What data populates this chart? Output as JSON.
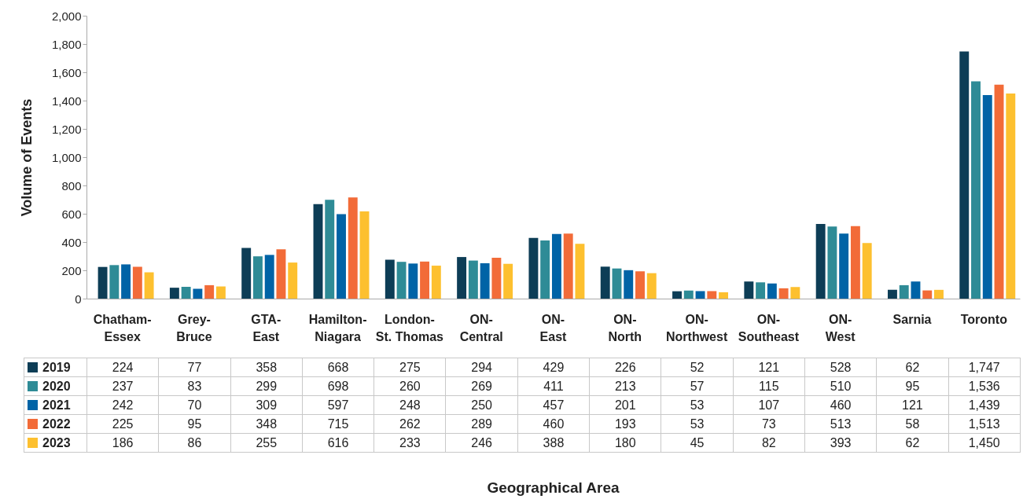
{
  "chart_data": {
    "type": "bar",
    "ylabel": "Volume of Events",
    "annotations": [
      "Geographical Area"
    ],
    "categories": [
      "Chatham-Essex",
      "Grey-Bruce",
      "GTA-East",
      "Hamilton-Niagara",
      "London-St. Thomas",
      "ON-Central",
      "ON-East",
      "ON-North",
      "ON-Northwest",
      "ON-Southeast",
      "ON-West",
      "Sarnia",
      "Toronto"
    ],
    "series": [
      {
        "name": "2019",
        "color": "#0d3d56",
        "values": [
          224,
          77,
          358,
          668,
          275,
          294,
          429,
          226,
          52,
          121,
          528,
          62,
          1747
        ],
        "value_labels": [
          "224",
          "77",
          "358",
          "668",
          "275",
          "294",
          "429",
          "226",
          "52",
          "121",
          "528",
          "62",
          "1,747"
        ]
      },
      {
        "name": "2020",
        "color": "#2e8b96",
        "values": [
          237,
          83,
          299,
          698,
          260,
          269,
          411,
          213,
          57,
          115,
          510,
          95,
          1536
        ],
        "value_labels": [
          "237",
          "83",
          "299",
          "698",
          "260",
          "269",
          "411",
          "213",
          "57",
          "115",
          "510",
          "95",
          "1,536"
        ]
      },
      {
        "name": "2021",
        "color": "#0063a6",
        "values": [
          242,
          70,
          309,
          597,
          248,
          250,
          457,
          201,
          53,
          107,
          460,
          121,
          1439
        ],
        "value_labels": [
          "242",
          "70",
          "309",
          "597",
          "248",
          "250",
          "457",
          "201",
          "53",
          "107",
          "460",
          "121",
          "1,439"
        ]
      },
      {
        "name": "2022",
        "color": "#f26b38",
        "values": [
          225,
          95,
          348,
          715,
          262,
          289,
          460,
          193,
          53,
          73,
          513,
          58,
          1513
        ],
        "value_labels": [
          "225",
          "95",
          "348",
          "715",
          "262",
          "289",
          "460",
          "193",
          "53",
          "73",
          "513",
          "58",
          "1,513"
        ]
      },
      {
        "name": "2023",
        "color": "#fdc02f",
        "values": [
          186,
          86,
          255,
          616,
          233,
          246,
          388,
          180,
          45,
          82,
          393,
          62,
          1450
        ],
        "value_labels": [
          "186",
          "86",
          "255",
          "616",
          "233",
          "246",
          "388",
          "180",
          "45",
          "82",
          "393",
          "62",
          "1,450"
        ]
      }
    ],
    "ylim": [
      0,
      2000
    ],
    "yticks": [
      0,
      {
        "value": 200,
        "label": "200"
      },
      {
        "value": 400,
        "label": "400"
      },
      {
        "value": 600,
        "label": "600"
      },
      {
        "value": 800,
        "label": "800"
      },
      {
        "value": 1000,
        "label": "1,000"
      },
      {
        "value": 1200,
        "label": "1,200"
      },
      {
        "value": 1400,
        "label": "1,400"
      },
      {
        "value": 1600,
        "label": "1,600"
      },
      {
        "value": 1800,
        "label": "1,800"
      },
      {
        "value": 2000,
        "label": "2,000"
      }
    ],
    "grid": false,
    "legend": "bottom"
  }
}
